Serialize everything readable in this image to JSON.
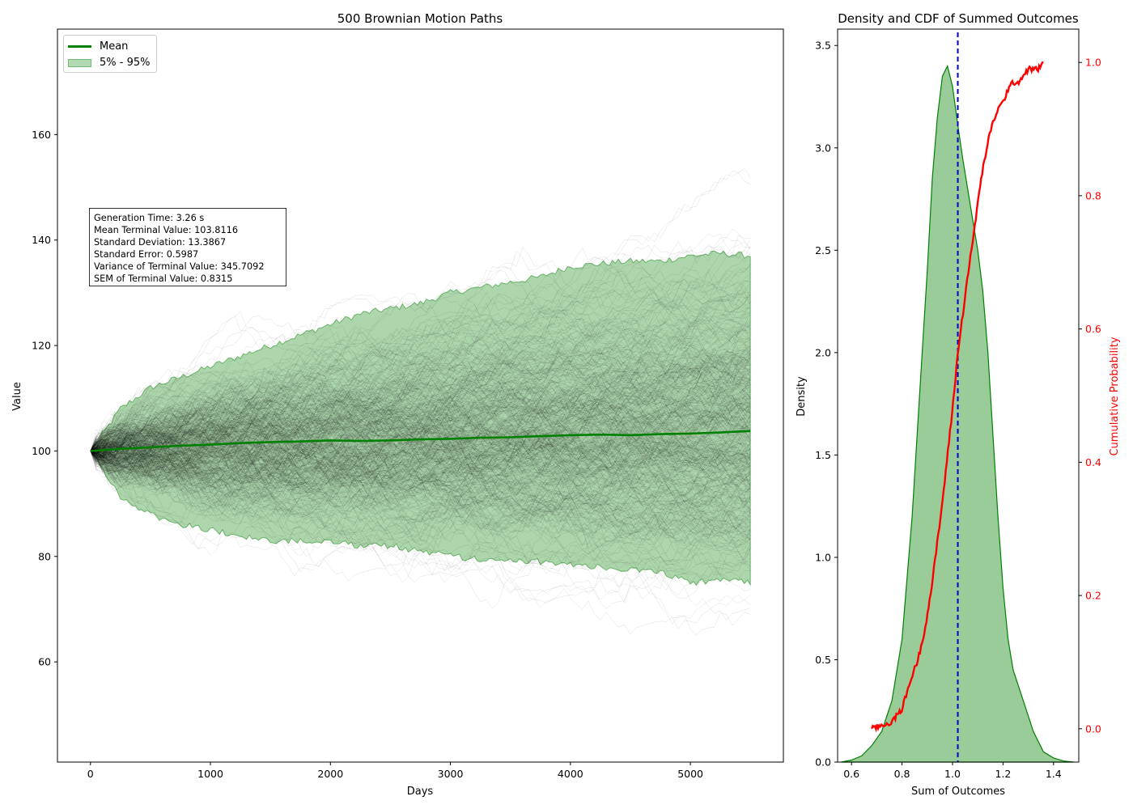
{
  "chart_data": [
    {
      "type": "line",
      "title": "500 Brownian Motion Paths",
      "xlabel": "Days",
      "ylabel": "Value",
      "xlim": [
        -275,
        5775
      ],
      "ylim": [
        41,
        180
      ],
      "xticks": [
        0,
        1000,
        2000,
        3000,
        4000,
        5000
      ],
      "yticks": [
        60,
        80,
        100,
        120,
        140,
        160
      ],
      "n_paths": 500,
      "n_days": 5500,
      "start_value": 100,
      "path_color": "#000000",
      "legend": {
        "position": "upper-left",
        "entries": [
          "Mean",
          "5% - 95%"
        ]
      },
      "series": [
        {
          "name": "Mean",
          "color": "#008000",
          "x": [
            0,
            250,
            500,
            750,
            1000,
            1250,
            1500,
            1750,
            2000,
            2250,
            2500,
            2750,
            3000,
            3250,
            3500,
            3750,
            4000,
            4250,
            4500,
            4750,
            5000,
            5250,
            5500
          ],
          "values": [
            100.0,
            100.4,
            100.7,
            101.0,
            101.2,
            101.5,
            101.7,
            101.8,
            102.0,
            101.9,
            102.0,
            102.2,
            102.3,
            102.5,
            102.6,
            102.8,
            103.0,
            103.1,
            103.0,
            103.2,
            103.3,
            103.5,
            103.8
          ]
        },
        {
          "name": "5% - 95%",
          "color": "#008000",
          "x": [
            0,
            250,
            500,
            750,
            1000,
            1250,
            1500,
            1750,
            2000,
            2250,
            2500,
            2750,
            3000,
            3250,
            3500,
            3750,
            4000,
            4250,
            4500,
            4750,
            5000,
            5250,
            5500
          ],
          "lower": [
            100,
            91,
            88,
            86,
            85,
            84,
            83,
            83,
            83,
            82,
            82,
            81,
            80,
            79.5,
            79,
            79,
            78.5,
            78,
            77.5,
            77,
            75,
            75.5,
            75
          ],
          "upper": [
            100,
            108,
            112,
            114,
            116,
            118,
            120,
            122,
            124,
            126,
            127,
            128,
            130,
            131,
            132,
            133,
            135,
            135.5,
            136,
            136,
            137,
            137.5,
            137
          ]
        }
      ],
      "annotation": [
        "Generation Time: 3.26 s",
        "Mean Terminal Value: 103.8116",
        "Standard Deviation: 13.3867",
        "Standard Error: 0.5987",
        "Variance of Terminal Value: 345.7092",
        "SEM of Terminal Value: 0.8315"
      ]
    },
    {
      "type": "area",
      "title": "Density and CDF of Summed Outcomes",
      "xlabel": "Sum of Outcomes",
      "ylabel": "Density",
      "y2label": "Cumulative Probability",
      "xlim": [
        0.545,
        1.5
      ],
      "ylim": [
        0,
        3.58
      ],
      "y2lim": [
        -0.05,
        1.05
      ],
      "xticks": [
        0.6,
        0.8,
        1.0,
        1.2,
        1.4
      ],
      "yticks": [
        0.0,
        0.5,
        1.0,
        1.5,
        2.0,
        2.5,
        3.0,
        3.5
      ],
      "y2ticks": [
        0.0,
        0.2,
        0.4,
        0.6,
        0.8,
        1.0
      ],
      "vline": {
        "x": 1.021,
        "color": "#0000cc",
        "style": "dashed"
      },
      "series": [
        {
          "name": "Density",
          "color": "#008000",
          "x": [
            0.56,
            0.6,
            0.64,
            0.68,
            0.72,
            0.76,
            0.8,
            0.84,
            0.88,
            0.9,
            0.92,
            0.94,
            0.96,
            0.98,
            1.0,
            1.02,
            1.04,
            1.06,
            1.08,
            1.1,
            1.12,
            1.14,
            1.16,
            1.18,
            1.2,
            1.22,
            1.24,
            1.28,
            1.32,
            1.36,
            1.4,
            1.44,
            1.48
          ],
          "values": [
            0.0,
            0.01,
            0.03,
            0.08,
            0.15,
            0.3,
            0.6,
            1.2,
            2.0,
            2.4,
            2.85,
            3.15,
            3.35,
            3.4,
            3.3,
            3.12,
            2.95,
            2.8,
            2.65,
            2.5,
            2.3,
            2.0,
            1.6,
            1.2,
            0.85,
            0.6,
            0.45,
            0.3,
            0.15,
            0.05,
            0.02,
            0.005,
            0.0
          ]
        },
        {
          "name": "CDF",
          "color": "#ff0000",
          "x": [
            0.68,
            0.72,
            0.76,
            0.8,
            0.84,
            0.86,
            0.88,
            0.9,
            0.92,
            0.94,
            0.96,
            0.98,
            1.0,
            1.02,
            1.04,
            1.06,
            1.08,
            1.1,
            1.12,
            1.14,
            1.16,
            1.18,
            1.2,
            1.22,
            1.24,
            1.26,
            1.28,
            1.3,
            1.34,
            1.36
          ],
          "values": [
            0.0,
            0.005,
            0.01,
            0.03,
            0.08,
            0.1,
            0.13,
            0.17,
            0.22,
            0.28,
            0.34,
            0.41,
            0.48,
            0.56,
            0.62,
            0.68,
            0.73,
            0.79,
            0.84,
            0.88,
            0.91,
            0.93,
            0.94,
            0.96,
            0.97,
            0.97,
            0.98,
            0.99,
            0.99,
            1.0
          ]
        }
      ]
    }
  ]
}
